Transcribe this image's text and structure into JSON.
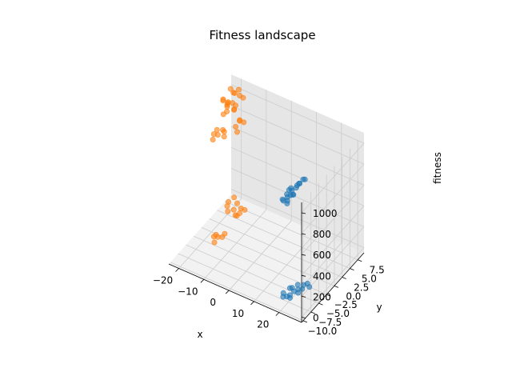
{
  "chart_data": {
    "type": "scatter",
    "projection": "3d",
    "title": "Fitness landscape",
    "xlabel": "x",
    "ylabel": "y",
    "zlabel": "fitness",
    "xlim": [
      -24,
      29
    ],
    "ylim": [
      -10.5,
      9.5
    ],
    "zlim": [
      -50,
      1100
    ],
    "xticks": [
      -20,
      -10,
      0,
      10,
      20
    ],
    "yticks": [
      -10.0,
      -7.5,
      -5.0,
      -2.5,
      0.0,
      2.5,
      5.0,
      7.5
    ],
    "ytick_labels": [
      "−10.0",
      "−7.5",
      "−5.0",
      "−2.5",
      "0.0",
      "2.5",
      "5.0",
      "7.5"
    ],
    "xtick_labels": [
      "−20",
      "−10",
      "0",
      "10",
      "20"
    ],
    "zticks": [
      0,
      200,
      400,
      600,
      800,
      1000
    ],
    "ztick_labels": [
      "0",
      "200",
      "400",
      "600",
      "800",
      "1000"
    ],
    "grid": true,
    "series": [
      {
        "color": "#1f77b4",
        "points": [
          [
            20,
            -8,
            1000
          ],
          [
            21,
            -7.2,
            1020
          ],
          [
            19,
            -6.5,
            980
          ],
          [
            22,
            -6.3,
            1050
          ],
          [
            23,
            -5.2,
            1080
          ],
          [
            18,
            -7.5,
            900
          ],
          [
            20,
            -6.8,
            950
          ],
          [
            21,
            -5.8,
            1000
          ],
          [
            19,
            -8.6,
            960
          ],
          [
            22,
            -5.5,
            1040
          ],
          [
            20,
            -7.8,
            930
          ],
          [
            21,
            -6.9,
            970
          ],
          [
            23,
            -4.6,
            1060
          ],
          [
            22,
            -8.3,
            1090
          ],
          [
            19,
            -7.1,
            870
          ],
          [
            18,
            -6.2,
            890
          ],
          [
            21,
            -4.9,
            1010
          ],
          [
            22,
            -7.5,
            1000
          ],
          [
            20,
            -8,
            20
          ],
          [
            21,
            -6.5,
            30
          ],
          [
            19,
            -5.5,
            10
          ],
          [
            22,
            -4.2,
            25
          ],
          [
            23,
            -3.8,
            35
          ],
          [
            18,
            -7.5,
            15
          ],
          [
            20,
            -7,
            0
          ],
          [
            21,
            -5.2,
            5
          ],
          [
            19,
            -8.4,
            20
          ],
          [
            22,
            -6,
            10
          ],
          [
            23,
            -5.5,
            40
          ],
          [
            24,
            -4,
            20
          ],
          [
            20,
            -4.5,
            15
          ],
          [
            19,
            -6.2,
            30
          ],
          [
            21,
            -7.8,
            10
          ]
        ]
      },
      {
        "color": "#ff7f0e",
        "points": [
          [
            -20,
            5,
            1000
          ],
          [
            -19,
            4.2,
            1020
          ],
          [
            -21,
            6.1,
            980
          ],
          [
            -18,
            5.6,
            960
          ],
          [
            -20,
            7,
            1050
          ],
          [
            -17,
            4.8,
            990
          ],
          [
            -22,
            5.3,
            1010
          ],
          [
            -19,
            6.6,
            1070
          ],
          [
            -20,
            3.8,
            950
          ],
          [
            -18,
            7.4,
            1030
          ],
          [
            -21,
            4.5,
            1060
          ],
          [
            -19,
            5.9,
            1000
          ],
          [
            -20,
            4.9,
            940
          ],
          [
            -18,
            6.1,
            980
          ],
          [
            -17,
            7.7,
            1010
          ],
          [
            -21,
            6.9,
            1080
          ],
          [
            -19,
            7.9,
            1060
          ],
          [
            -20,
            5.2,
            1010
          ],
          [
            -15,
            -2,
            1000
          ],
          [
            -14,
            -1.2,
            1030
          ],
          [
            -16,
            -2.8,
            970
          ],
          [
            -13,
            -1.6,
            990
          ],
          [
            -15,
            -3.3,
            1050
          ],
          [
            -14,
            -0.8,
            1000
          ],
          [
            -16,
            -1.5,
            1020
          ],
          [
            -15,
            5,
            900
          ],
          [
            -16,
            4.5,
            850
          ],
          [
            -14,
            5.5,
            880
          ],
          [
            -15,
            4.2,
            820
          ],
          [
            -16,
            5.8,
            870
          ],
          [
            -20,
            5,
            30
          ],
          [
            -19,
            4.4,
            10
          ],
          [
            -21,
            6.2,
            20
          ],
          [
            -18,
            5.5,
            0
          ],
          [
            -20,
            7.2,
            40
          ],
          [
            -18,
            6.6,
            25
          ],
          [
            -15,
            -2,
            20
          ],
          [
            -14,
            -1.4,
            10
          ],
          [
            -16,
            -2.5,
            30
          ],
          [
            -15,
            -3.1,
            5
          ],
          [
            -14,
            -0.6,
            15
          ],
          [
            -16,
            -1.8,
            25
          ],
          [
            -15,
            5,
            15
          ],
          [
            -16,
            4.4,
            5
          ],
          [
            -14,
            5.8,
            30
          ],
          [
            -15,
            4.1,
            20
          ],
          [
            -16,
            6.2,
            10
          ]
        ]
      }
    ]
  }
}
